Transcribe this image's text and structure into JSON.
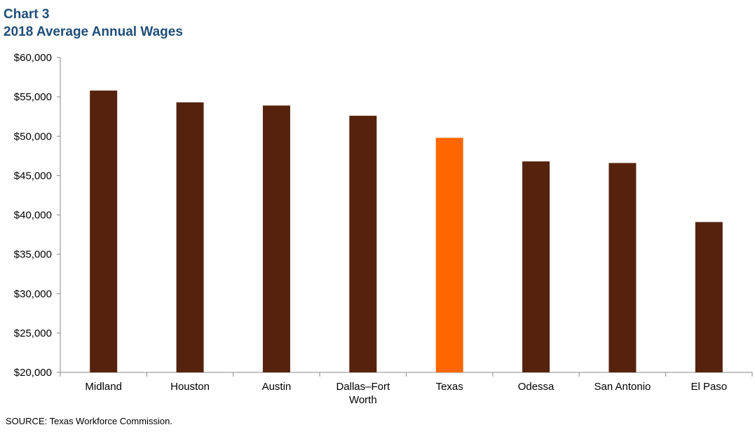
{
  "header": {
    "chart_number": "Chart 3",
    "title": "2018 Average Annual Wages"
  },
  "footer": {
    "source": "SOURCE:  Texas Workforce Commission."
  },
  "colors": {
    "default_bar": "#55230d",
    "highlight_bar": "#ff6600",
    "header_text": "#1f4e79"
  },
  "chart_data": {
    "type": "bar",
    "title": "2018 Average Annual Wages",
    "xlabel": "",
    "ylabel": "",
    "categories": [
      "Midland",
      "Houston",
      "Austin",
      "Dallas–Fort Worth",
      "Texas",
      "Odessa",
      "San Antonio",
      "El Paso"
    ],
    "category_label_lines": [
      [
        "Midland"
      ],
      [
        "Houston"
      ],
      [
        "Austin"
      ],
      [
        "Dallas–Fort",
        "Worth"
      ],
      [
        "Texas"
      ],
      [
        "Odessa"
      ],
      [
        "San Antonio"
      ],
      [
        "El Paso"
      ]
    ],
    "values": [
      55800,
      54300,
      53900,
      52600,
      49800,
      46800,
      46600,
      39100
    ],
    "highlight_category": "Texas",
    "ylim": [
      20000,
      60000
    ],
    "yticks": [
      20000,
      25000,
      30000,
      35000,
      40000,
      45000,
      50000,
      55000,
      60000
    ],
    "ytick_labels": [
      "$20,000",
      "$25,000",
      "$30,000",
      "$35,000",
      "$40,000",
      "$45,000",
      "$50,000",
      "$55,000",
      "$60,000"
    ],
    "grid": false,
    "legend": "none"
  }
}
